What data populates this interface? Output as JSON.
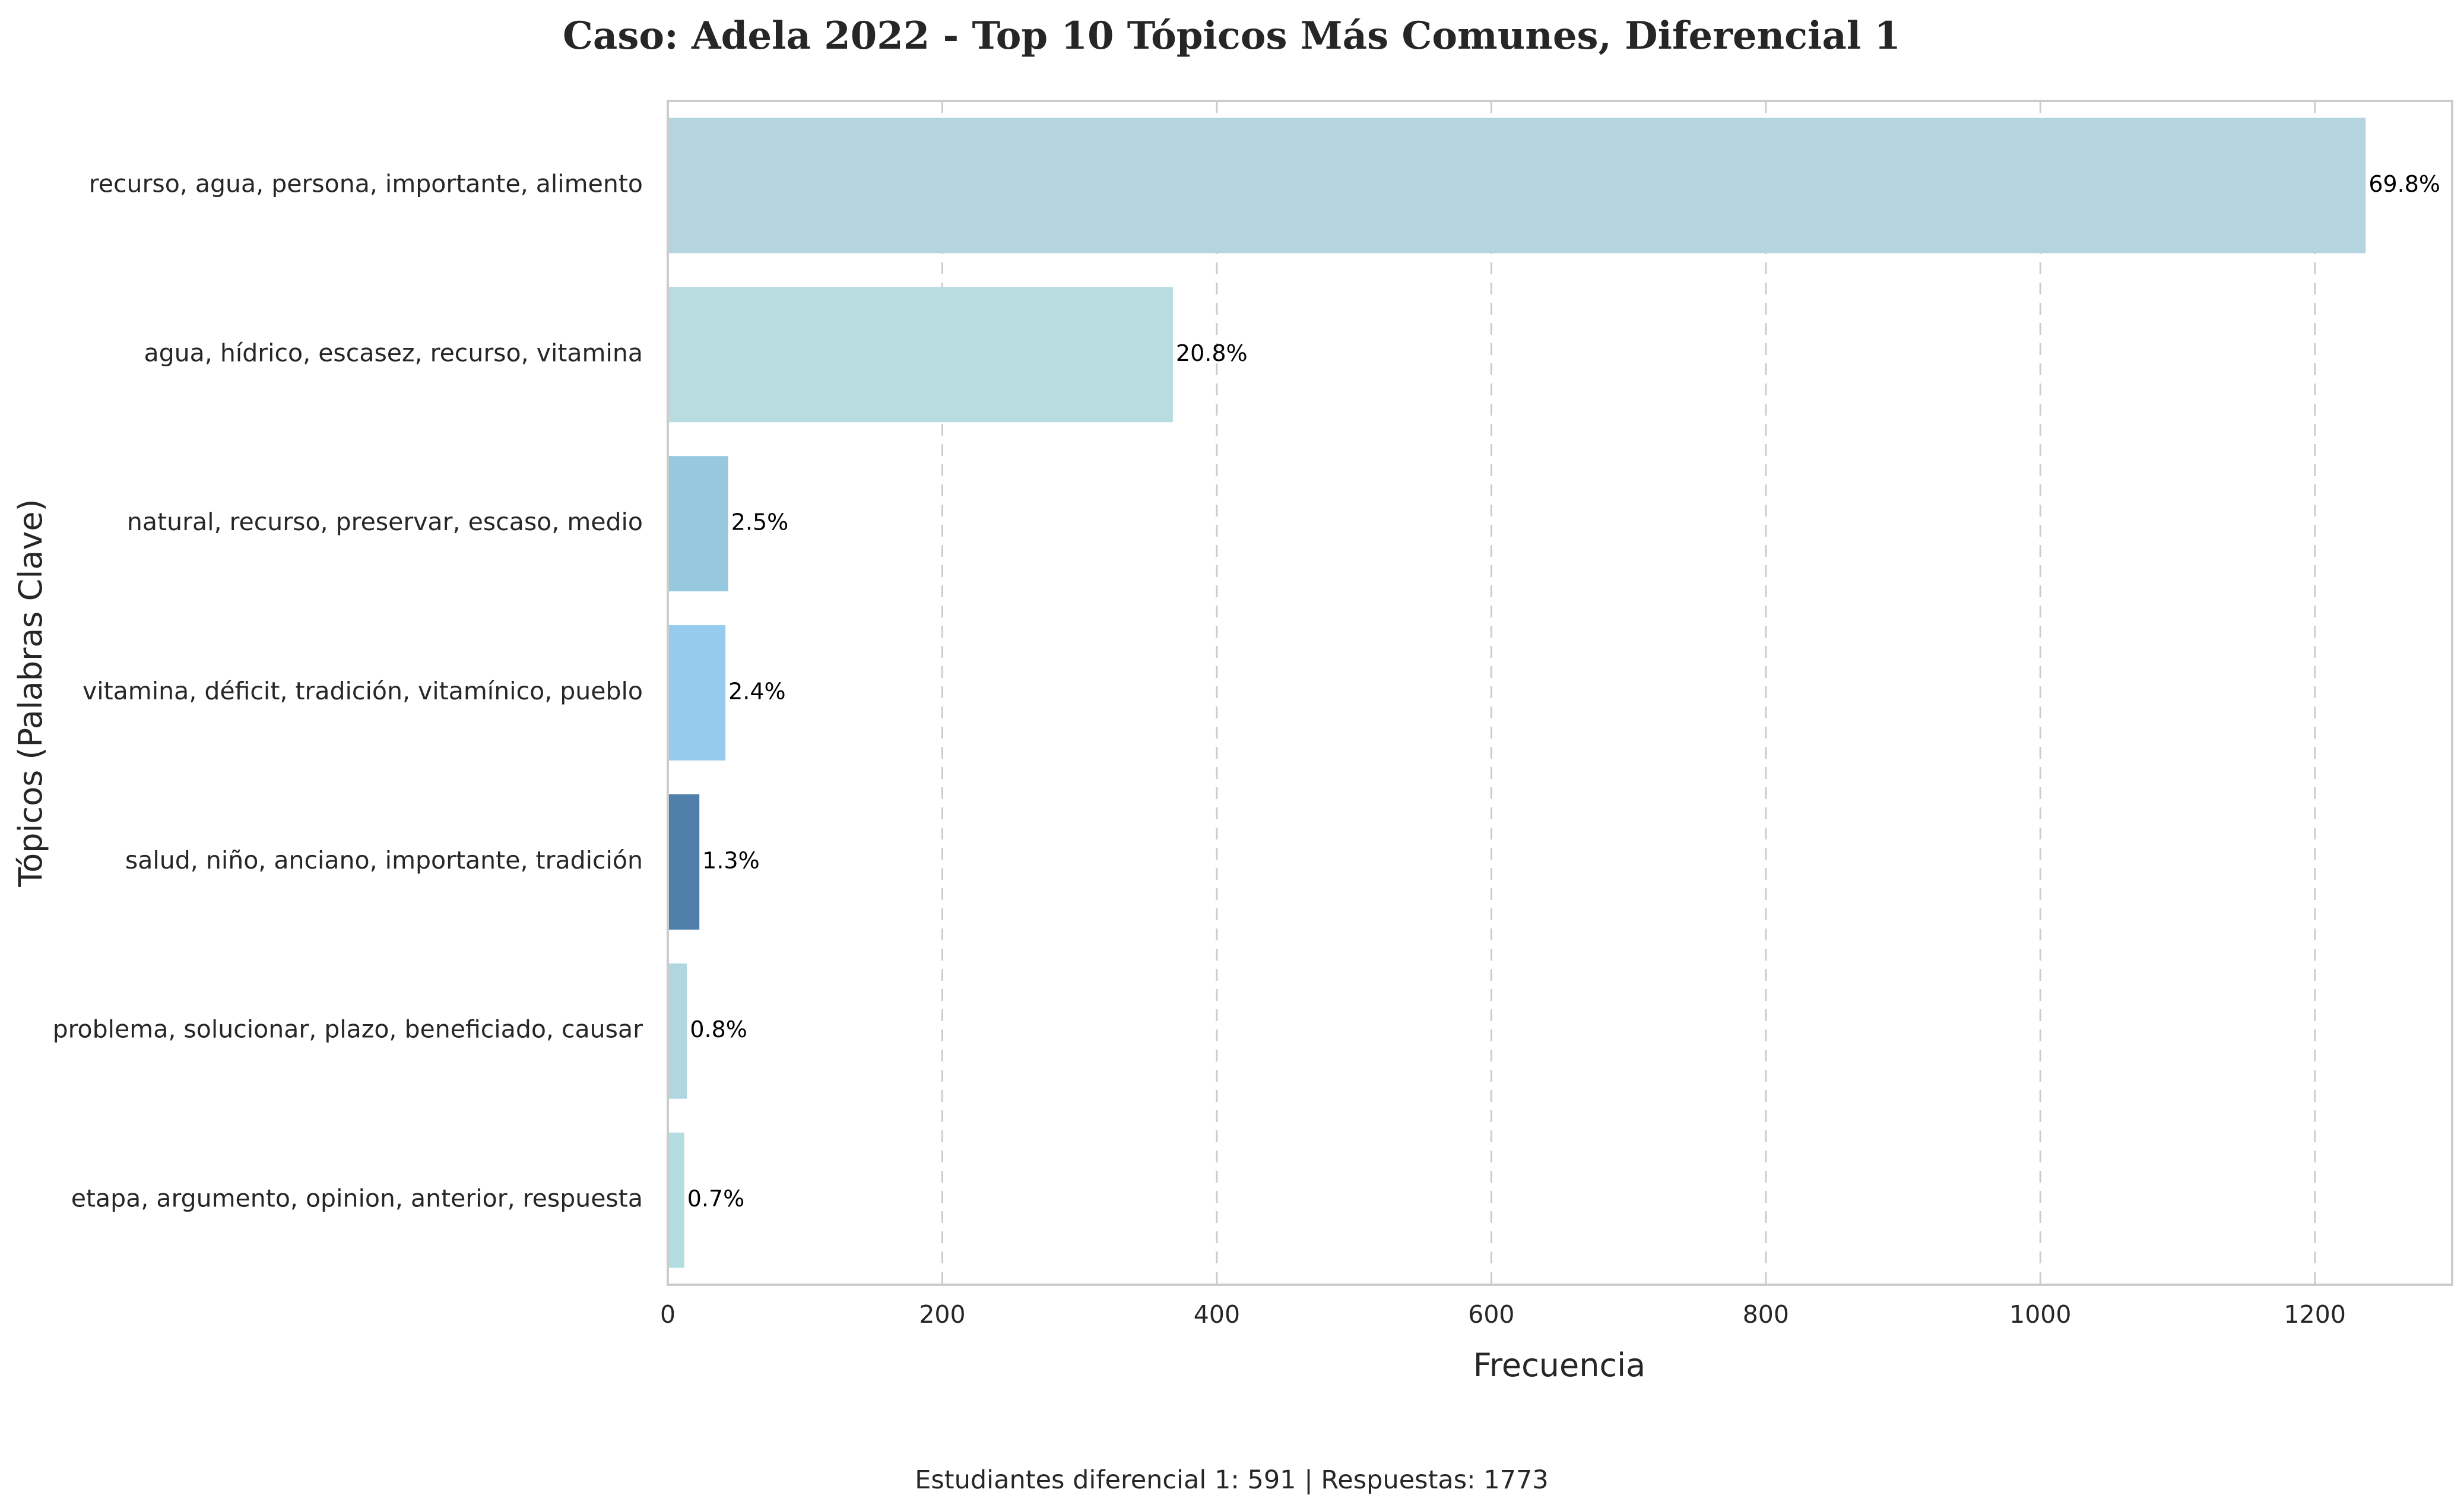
{
  "chart_data": {
    "type": "bar",
    "orientation": "horizontal",
    "title": "Caso: Adela 2022 - Top 10 Tópicos Más Comunes, Diferencial 1",
    "xlabel": "Frecuencia",
    "ylabel": "Tópicos (Palabras Clave)",
    "xlim": [
      0,
      1300
    ],
    "xticks": [
      0,
      200,
      400,
      600,
      800,
      1000,
      1200
    ],
    "grid": "vertical-dashed",
    "categories": [
      "recurso, agua, persona, importante, alimento",
      "agua, hídrico, escasez, recurso, vitamina",
      "natural, recurso, preservar, escaso, medio",
      "vitamina, déficit, tradición, vitamínico, pueblo",
      "salud, niño, anciano, importante, tradición",
      "problema, solucionar, plazo, beneficiado, causar",
      "etapa, argumento, opinion, anterior, respuesta"
    ],
    "values": [
      1237,
      368,
      44,
      42,
      23,
      14,
      12
    ],
    "labels": [
      "69.8%",
      "20.8%",
      "2.5%",
      "2.4%",
      "1.3%",
      "0.8%",
      "0.7%"
    ],
    "colors": [
      "#b4d5df",
      "#b8dcdf",
      "#97c8dd",
      "#97cbee",
      "#4f7faa",
      "#b2d6e1",
      "#b4dde2"
    ],
    "footer": "Estudiantes diferencial 1: 591 | Respuestas: 1773"
  }
}
